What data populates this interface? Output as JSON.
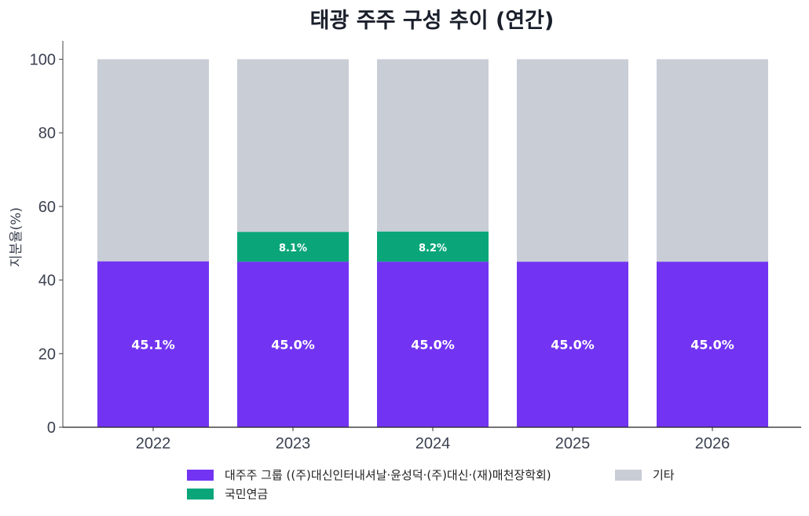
{
  "chart_data": {
    "type": "bar",
    "stacked": true,
    "title": "태광 주주 구성 추이 (연간)",
    "xlabel": "",
    "ylabel": "지분율(%)",
    "ylim": [
      0,
      105
    ],
    "yticks": [
      0,
      20,
      40,
      60,
      80,
      100
    ],
    "categories": [
      "2022",
      "2023",
      "2024",
      "2025",
      "2026"
    ],
    "series": [
      {
        "name": "대주주 그룹 ((주)대신인터내셔날·윤성덕·(주)대신·(재)매천장학회)",
        "color": "#7234f2",
        "values": [
          45.1,
          45.0,
          45.0,
          45.0,
          45.0
        ],
        "labels": [
          "45.1%",
          "45.0%",
          "45.0%",
          "45.0%",
          "45.0%"
        ]
      },
      {
        "name": "국민연금",
        "color": "#0aa67a",
        "values": [
          0,
          8.1,
          8.2,
          0,
          0
        ],
        "labels": [
          "",
          "8.1%",
          "8.2%",
          "",
          ""
        ]
      },
      {
        "name": "기타",
        "color": "#c8cdd6",
        "values": [
          54.9,
          46.9,
          46.8,
          55.0,
          55.0
        ],
        "labels": [
          "",
          "",
          "",
          "",
          ""
        ]
      }
    ],
    "grid": false,
    "legend_position": "bottom"
  }
}
